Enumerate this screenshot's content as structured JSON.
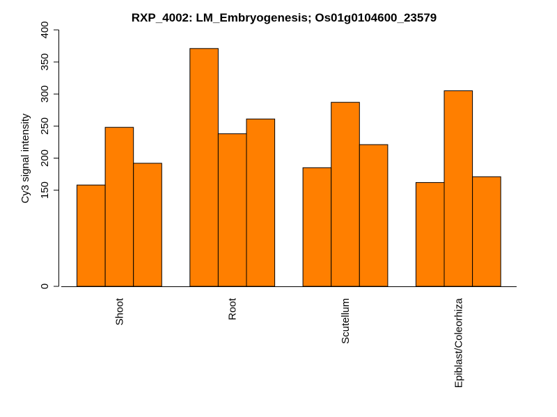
{
  "chart_data": {
    "type": "bar",
    "title": "RXP_4002: LM_Embryogenesis; Os01g0104600_23579",
    "xlabel": "",
    "ylabel": "Cy3 signal intensity",
    "ylim": [
      0,
      400
    ],
    "y_ticks": [
      0,
      150,
      200,
      250,
      300,
      350,
      400
    ],
    "categories": [
      "Shoot",
      "Root",
      "Scutellum",
      "Epiblast/Coleorhiza"
    ],
    "bars_per_category": 3,
    "values": [
      [
        158,
        248,
        192
      ],
      [
        371,
        238,
        261
      ],
      [
        185,
        287,
        221
      ],
      [
        162,
        305,
        171
      ]
    ],
    "bar_color": "#ff7f00",
    "grid": false,
    "legend": "none"
  }
}
